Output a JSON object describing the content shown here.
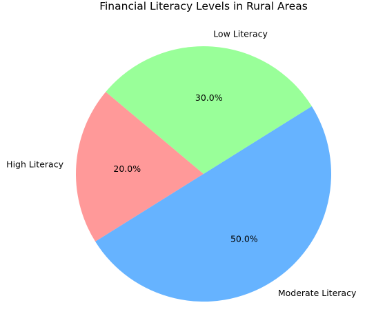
{
  "chart_data": {
    "type": "pie",
    "title": "Financial Literacy Levels in Rural Areas",
    "start_angle_deg": 140,
    "direction": "counterclockwise",
    "slices": [
      {
        "label": "High Literacy",
        "value": 20,
        "pct_label": "20.0%",
        "color": "#ff9999"
      },
      {
        "label": "Moderate Literacy",
        "value": 50,
        "pct_label": "50.0%",
        "color": "#66b3ff"
      },
      {
        "label": "Low Literacy",
        "value": 30,
        "pct_label": "30.0%",
        "color": "#99ff99"
      }
    ]
  }
}
